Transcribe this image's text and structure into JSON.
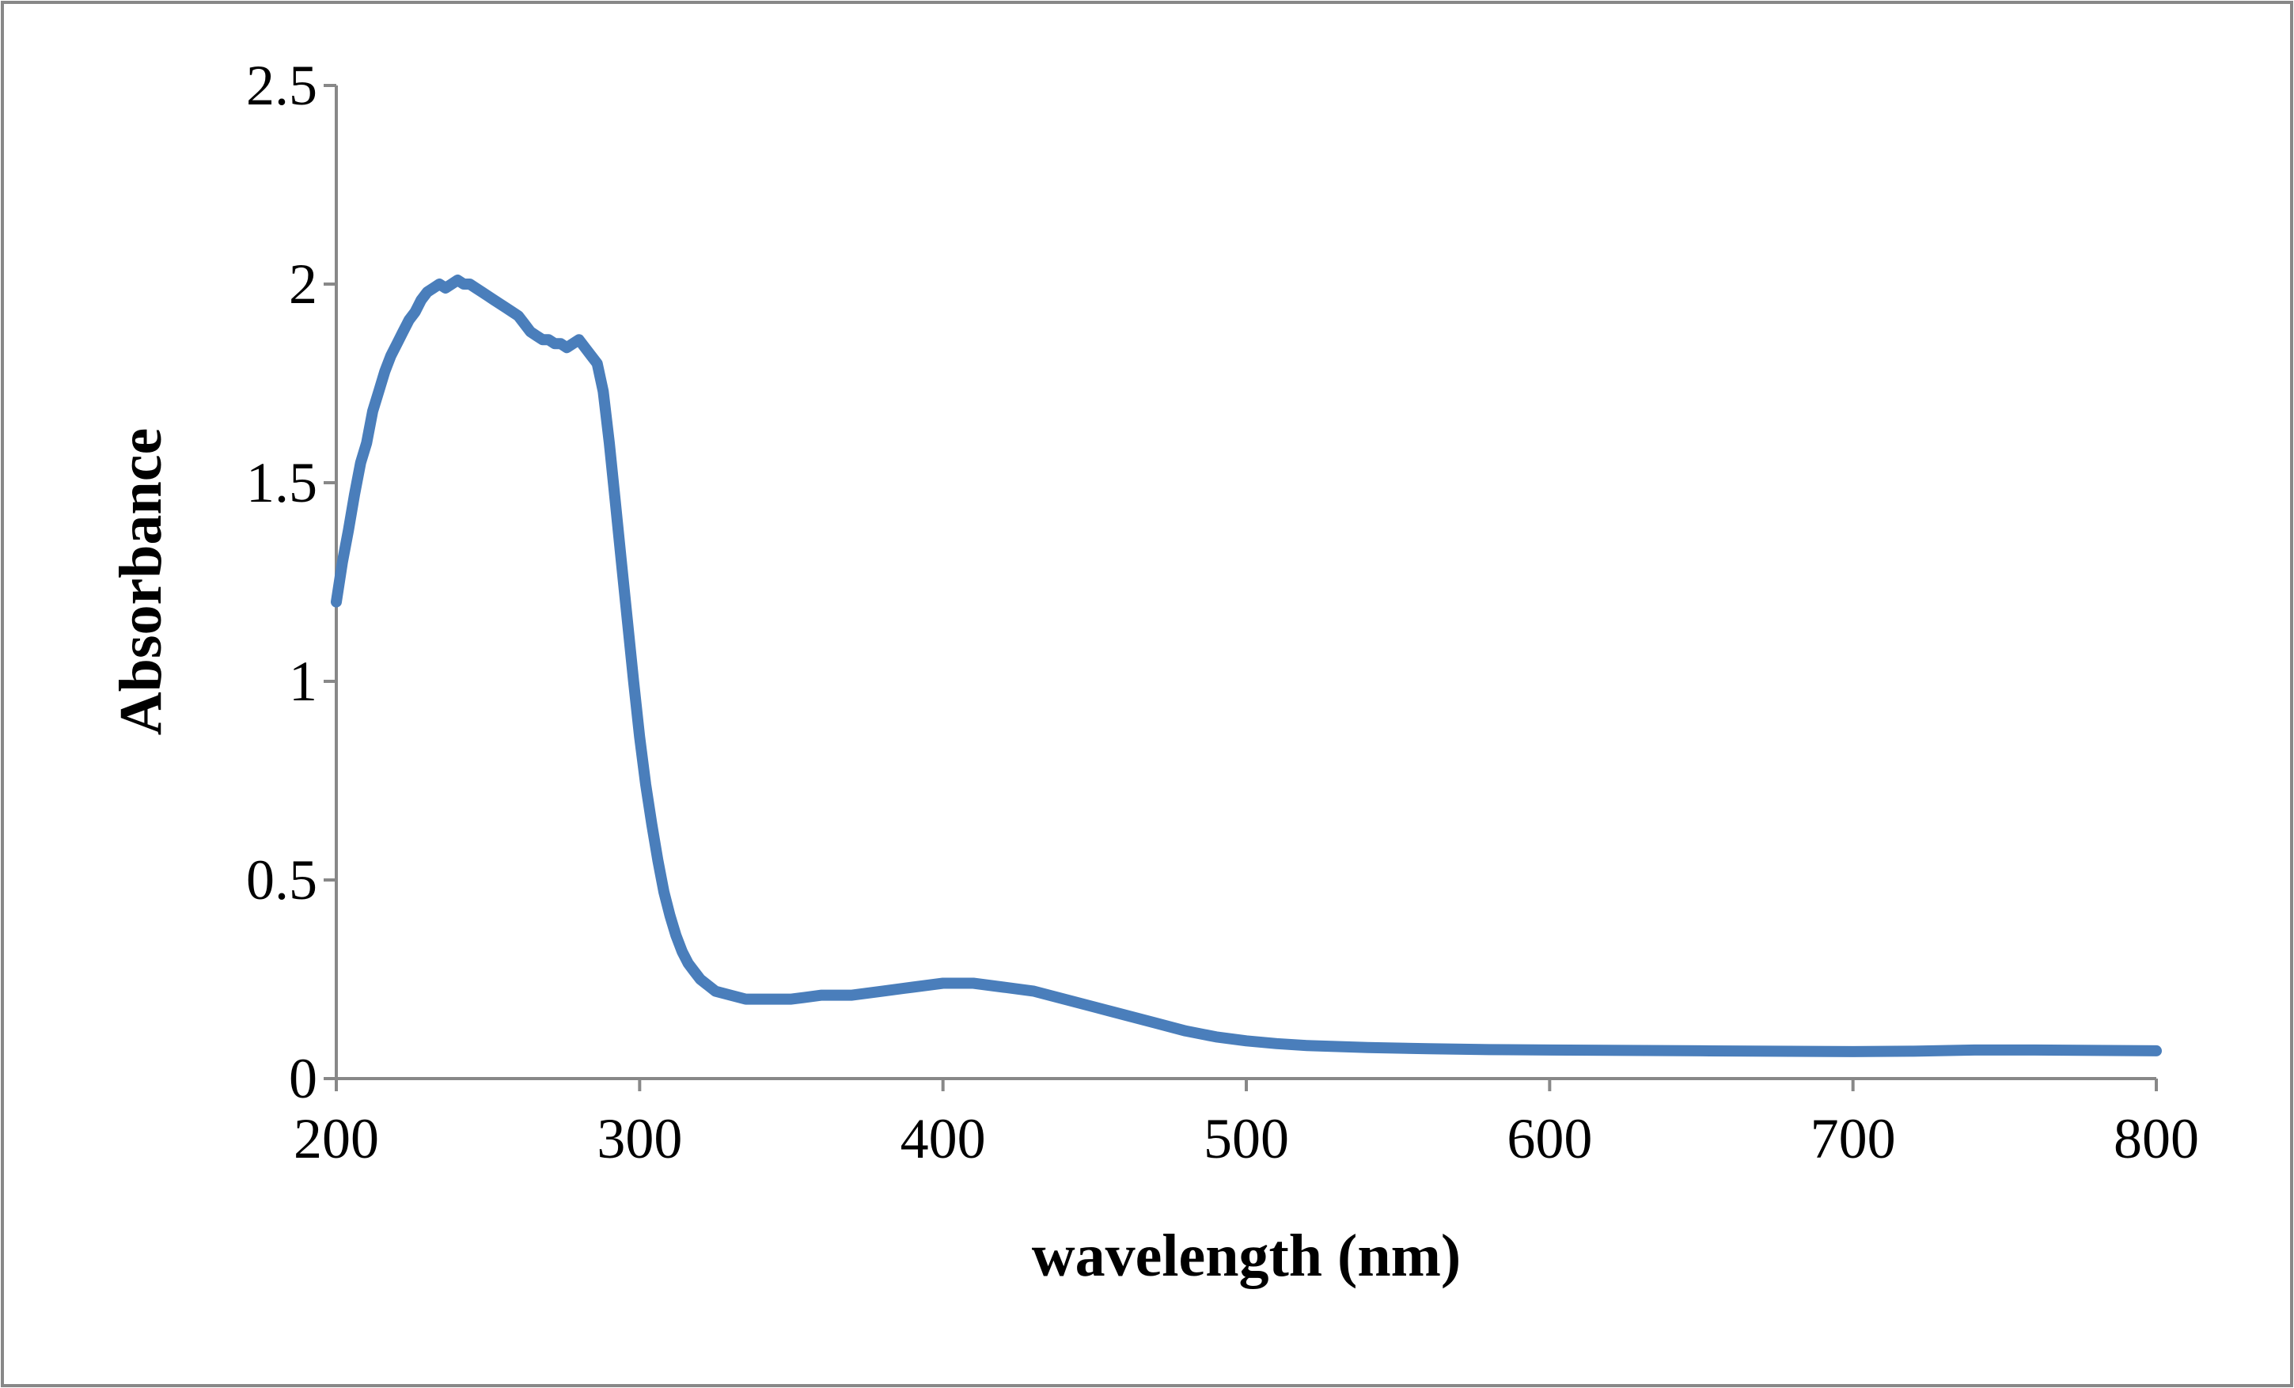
{
  "chart_data": {
    "type": "line",
    "title": "",
    "xlabel": "wavelength (nm)",
    "ylabel": "Absorbance",
    "xlim": [
      200,
      800
    ],
    "ylim": [
      0,
      2.5
    ],
    "xticks": [
      "200",
      "300",
      "400",
      "500",
      "600",
      "700",
      "800"
    ],
    "yticks": [
      "0",
      "0.5",
      "1",
      "1.5",
      "2",
      "2.5"
    ],
    "grid": false,
    "legend": "none",
    "colors": {
      "series": "#4a7ebb",
      "axis": "#888888",
      "frame": "#888888"
    },
    "series": [
      {
        "name": "Absorbance",
        "x": [
          200,
          202,
          204,
          206,
          208,
          210,
          212,
          214,
          216,
          218,
          220,
          222,
          224,
          226,
          228,
          230,
          232,
          234,
          236,
          238,
          240,
          242,
          244,
          246,
          248,
          250,
          252,
          254,
          256,
          258,
          260,
          262,
          264,
          266,
          268,
          270,
          272,
          274,
          276,
          278,
          280,
          282,
          284,
          286,
          288,
          290,
          292,
          294,
          296,
          298,
          300,
          302,
          304,
          306,
          308,
          310,
          312,
          314,
          316,
          318,
          320,
          325,
          330,
          335,
          340,
          345,
          350,
          360,
          370,
          380,
          390,
          400,
          410,
          420,
          430,
          440,
          450,
          460,
          470,
          480,
          490,
          500,
          510,
          520,
          540,
          560,
          580,
          600,
          650,
          700,
          720,
          740,
          760,
          780,
          800
        ],
        "y": [
          1.2,
          1.3,
          1.38,
          1.47,
          1.55,
          1.6,
          1.68,
          1.73,
          1.78,
          1.82,
          1.85,
          1.88,
          1.91,
          1.93,
          1.96,
          1.98,
          1.99,
          2.0,
          1.99,
          2.0,
          2.01,
          2.0,
          2.0,
          1.99,
          1.98,
          1.97,
          1.96,
          1.95,
          1.94,
          1.93,
          1.92,
          1.9,
          1.88,
          1.87,
          1.86,
          1.86,
          1.85,
          1.85,
          1.84,
          1.85,
          1.86,
          1.84,
          1.82,
          1.8,
          1.73,
          1.6,
          1.45,
          1.3,
          1.15,
          1.0,
          0.86,
          0.74,
          0.64,
          0.55,
          0.47,
          0.41,
          0.36,
          0.32,
          0.29,
          0.27,
          0.25,
          0.22,
          0.21,
          0.2,
          0.2,
          0.2,
          0.2,
          0.21,
          0.21,
          0.22,
          0.23,
          0.24,
          0.24,
          0.23,
          0.22,
          0.2,
          0.18,
          0.16,
          0.14,
          0.12,
          0.105,
          0.095,
          0.088,
          0.083,
          0.078,
          0.075,
          0.073,
          0.072,
          0.07,
          0.068,
          0.069,
          0.072,
          0.072,
          0.071,
          0.07
        ]
      }
    ]
  }
}
